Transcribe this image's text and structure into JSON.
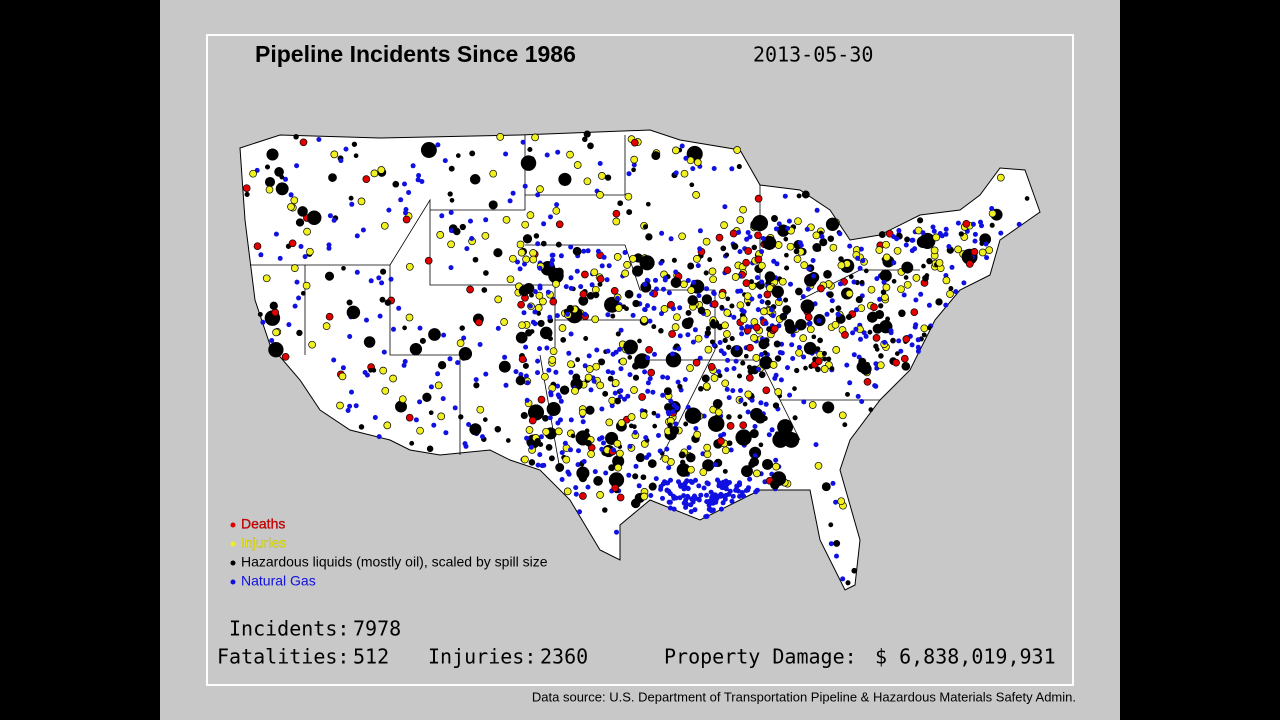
{
  "header": {
    "title": "Pipeline Incidents Since 1986",
    "date": "2013-05-30"
  },
  "legend": [
    {
      "name": "Deaths",
      "color": "#e00000"
    },
    {
      "name": "Injuries",
      "color": "#f0f020"
    },
    {
      "name": "Hazardous liquids (mostly oil), scaled by spill size",
      "color": "#000000"
    },
    {
      "name": "Natural Gas",
      "color": "#1010e0"
    }
  ],
  "stats": {
    "incidents": {
      "label": "Incidents:",
      "value": "7978"
    },
    "fatalities": {
      "label": "Fatalities:",
      "value": "512"
    },
    "injuries": {
      "label": "Injuries:",
      "value": "2360"
    },
    "damage": {
      "label": "Property Damage:",
      "value": "$ 6,838,019,931"
    }
  },
  "footer": {
    "source": "Data source: U.S. Department of Transportation Pipeline & Hazardous Materials Safety Admin."
  }
}
